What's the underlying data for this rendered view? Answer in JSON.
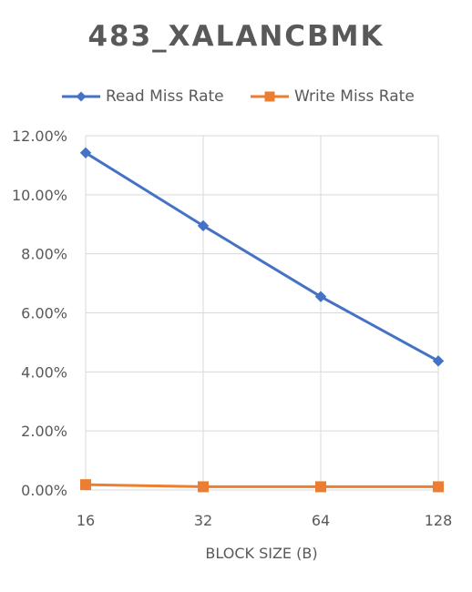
{
  "chart_data": {
    "type": "line",
    "title": "483_XALANCBMK",
    "xlabel": "BLOCK SIZE (B)",
    "ylabel": "",
    "categories": [
      "16",
      "32",
      "64",
      "128"
    ],
    "y_ticks": [
      "0.00%",
      "2.00%",
      "4.00%",
      "6.00%",
      "8.00%",
      "10.00%",
      "12.00%"
    ],
    "ylim": [
      0,
      0.12
    ],
    "grid": true,
    "legend_position": "top",
    "series": [
      {
        "name": "Read Miss Rate",
        "values": [
          0.1142,
          0.0895,
          0.0655,
          0.0437
        ],
        "color": "#4472C4",
        "marker": "diamond"
      },
      {
        "name": "Write Miss Rate",
        "values": [
          0.0018,
          0.0011,
          0.0011,
          0.0011
        ],
        "color": "#ED7D31",
        "marker": "square"
      }
    ]
  }
}
